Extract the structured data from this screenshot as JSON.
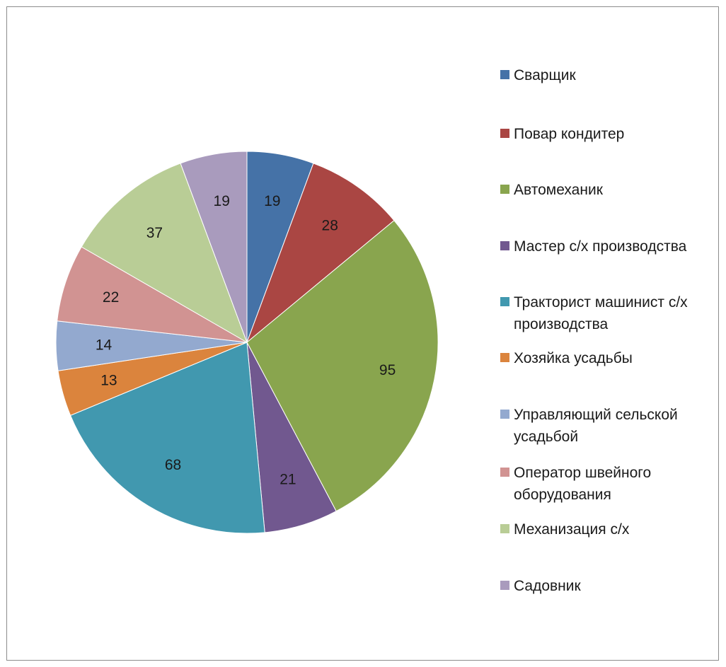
{
  "chart_data": {
    "type": "pie",
    "title": "",
    "start_angle_deg": 0,
    "direction": "clockwise",
    "legend_position": "right",
    "slices": [
      {
        "label": "Сварщик",
        "value": 19,
        "color": "#4572A7"
      },
      {
        "label": "Повар кондитер",
        "value": 28,
        "color": "#AA4643"
      },
      {
        "label": "Автомеханик",
        "value": 95,
        "color": "#89A54E"
      },
      {
        "label": "Мастер с/х производства",
        "value": 21,
        "color": "#71588F"
      },
      {
        "label": "Тракторист машинист с/х производства",
        "value": 68,
        "color": "#4198AF"
      },
      {
        "label": "Хозяйка усадьбы",
        "value": 13,
        "color": "#DB843D"
      },
      {
        "label": "Управляющий сельской усадьбой",
        "value": 14,
        "color": "#93A9CF"
      },
      {
        "label": "Оператор швейного оборудования",
        "value": 22,
        "color": "#D19392"
      },
      {
        "label": "Механизация с/х",
        "value": 37,
        "color": "#B9CD96"
      },
      {
        "label": "Садовник",
        "value": 19,
        "color": "#A99BBD"
      }
    ]
  }
}
